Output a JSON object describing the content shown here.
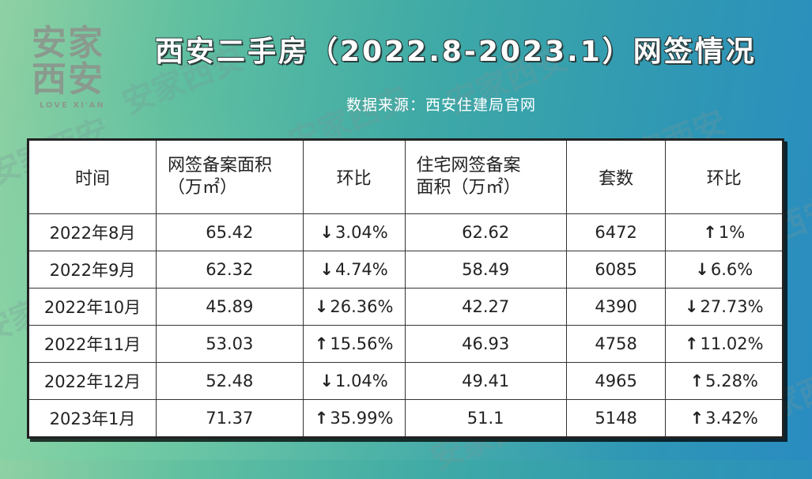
{
  "logo": {
    "line1": "安家",
    "line2": "西安",
    "subtitle": "LOVE XI'AN"
  },
  "title": "西安二手房（2022.8-2023.1）网签情况",
  "source": "数据来源：西安住建局官网",
  "watermark_text": "安家西安",
  "colors": {
    "background_start": "#8fd1a3",
    "background_end": "#2a8cc1",
    "title_text": "#ffffff",
    "table_bg": "#ffffff",
    "table_border": "#222222"
  },
  "chart_data": {
    "type": "table",
    "title": "西安二手房（2022.8-2023.1）网签情况",
    "headers": {
      "period": "时间",
      "area_line1": "网签备案面积",
      "area_line2": "（万㎡）",
      "area_mom": "环比",
      "res_area_line1": "住宅网签备案",
      "res_area_line2": "面积（万㎡）",
      "units": "套数",
      "units_mom": "环比"
    },
    "rows": [
      {
        "period": "2022年8月",
        "area": "65.42",
        "area_mom_arrow": "↓",
        "area_mom": "3.04%",
        "res_area": "62.62",
        "units": "6472",
        "units_mom_arrow": "↑",
        "units_mom": "1%"
      },
      {
        "period": "2022年9月",
        "area": "62.32",
        "area_mom_arrow": "↓",
        "area_mom": "4.74%",
        "res_area": "58.49",
        "units": "6085",
        "units_mom_arrow": "↓",
        "units_mom": "6.6%"
      },
      {
        "period": "2022年10月",
        "area": "45.89",
        "area_mom_arrow": "↓",
        "area_mom": "26.36%",
        "res_area": "42.27",
        "units": "4390",
        "units_mom_arrow": "↓",
        "units_mom": "27.73%"
      },
      {
        "period": "2022年11月",
        "area": "53.03",
        "area_mom_arrow": "↑",
        "area_mom": "15.56%",
        "res_area": "46.93",
        "units": "4758",
        "units_mom_arrow": "↑",
        "units_mom": "11.02%"
      },
      {
        "period": "2022年12月",
        "area": "52.48",
        "area_mom_arrow": "↓",
        "area_mom": "1.04%",
        "res_area": "49.41",
        "units": "4965",
        "units_mom_arrow": "↑",
        "units_mom": "5.28%"
      },
      {
        "period": "2023年1月",
        "area": "71.37",
        "area_mom_arrow": "↑",
        "area_mom": "35.99%",
        "res_area": "51.1",
        "units": "5148",
        "units_mom_arrow": "↑",
        "units_mom": "3.42%"
      }
    ]
  }
}
